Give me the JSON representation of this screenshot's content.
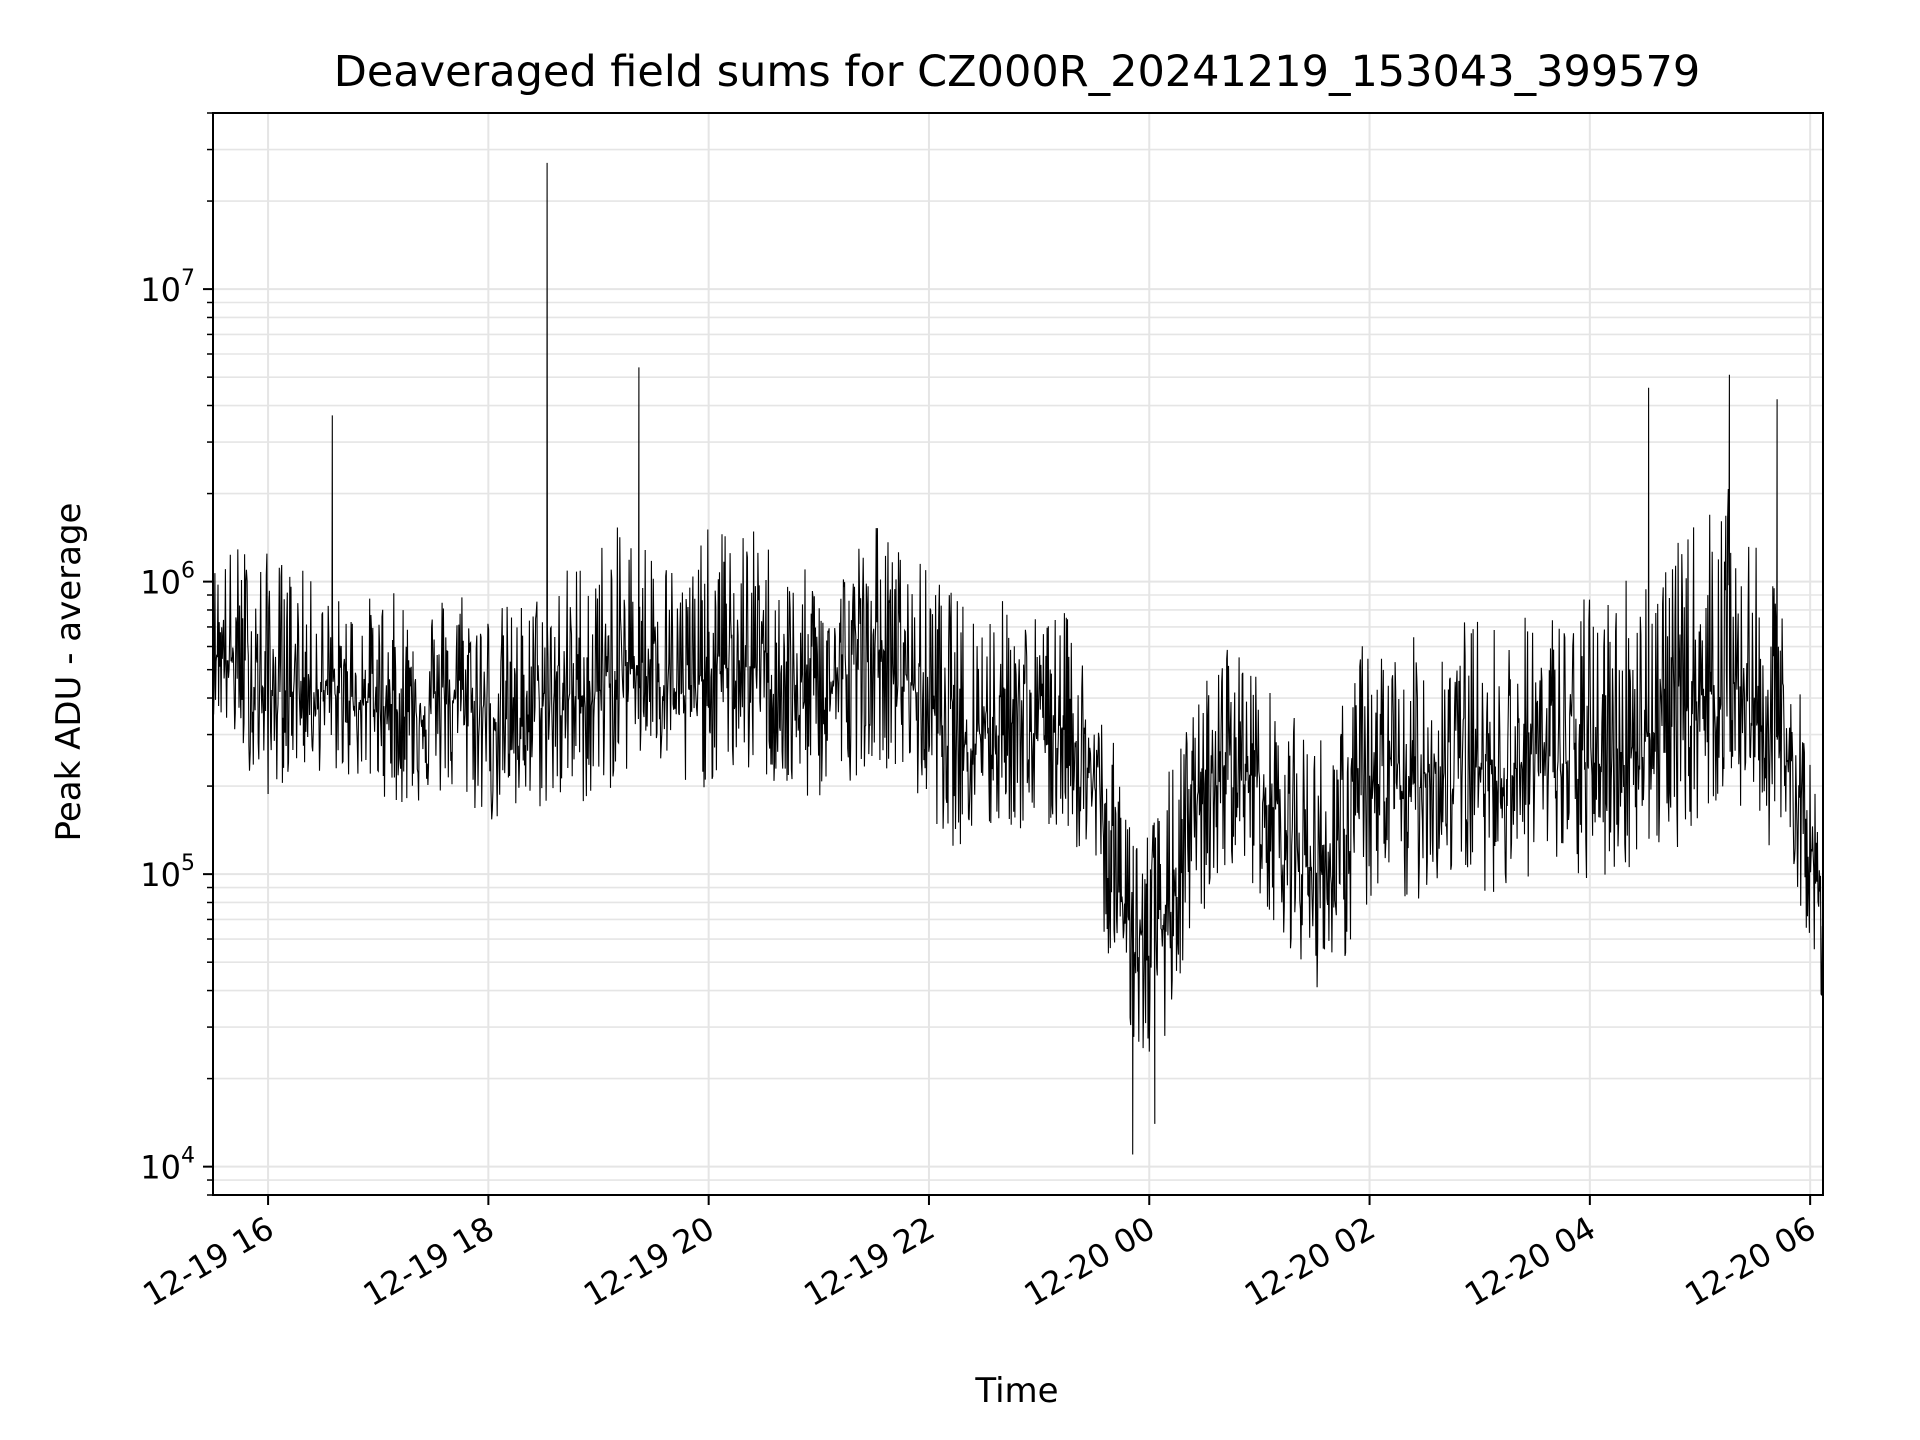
{
  "chart_data": {
    "type": "line",
    "title": "Deaveraged field sums for CZ000R_20241219_153043_399579",
    "xlabel": "Time",
    "ylabel": "Peak ADU - average",
    "yscale": "log",
    "ylim": [
      8000,
      40000000
    ],
    "xlim": [
      "2024-12-19T15:30",
      "2024-12-20T06:07"
    ],
    "grid": true,
    "line_color": "#000000",
    "grid_color": "#e5e5e5",
    "x_ticks": [
      {
        "value": "2024-12-19T16:00",
        "label": "12-19 16"
      },
      {
        "value": "2024-12-19T18:00",
        "label": "12-19 18"
      },
      {
        "value": "2024-12-19T20:00",
        "label": "12-19 20"
      },
      {
        "value": "2024-12-19T22:00",
        "label": "12-19 22"
      },
      {
        "value": "2024-12-20T00:00",
        "label": "12-20 00"
      },
      {
        "value": "2024-12-20T02:00",
        "label": "12-20 02"
      },
      {
        "value": "2024-12-20T04:00",
        "label": "12-20 04"
      },
      {
        "value": "2024-12-20T06:00",
        "label": "12-20 06"
      }
    ],
    "y_ticks": [
      {
        "value": 10000,
        "base": "10",
        "exp": "4"
      },
      {
        "value": 100000,
        "base": "10",
        "exp": "5"
      },
      {
        "value": 1000000,
        "base": "10",
        "exp": "6"
      },
      {
        "value": 10000000,
        "base": "10",
        "exp": "7"
      }
    ],
    "series": [
      {
        "x": [
          "2024-12-19T15:30",
          "2024-12-19T15:45",
          "2024-12-19T16:00",
          "2024-12-19T16:15",
          "2024-12-19T16:30",
          "2024-12-19T16:45",
          "2024-12-19T17:00",
          "2024-12-19T17:15",
          "2024-12-19T17:30",
          "2024-12-19T17:45",
          "2024-12-19T18:00",
          "2024-12-19T18:15",
          "2024-12-19T18:30",
          "2024-12-19T18:45",
          "2024-12-19T19:00",
          "2024-12-19T19:15",
          "2024-12-19T19:30",
          "2024-12-19T19:45",
          "2024-12-19T20:00",
          "2024-12-19T20:15",
          "2024-12-19T20:30",
          "2024-12-19T20:45",
          "2024-12-19T21:00",
          "2024-12-19T21:15",
          "2024-12-19T21:30",
          "2024-12-19T21:45",
          "2024-12-19T22:00",
          "2024-12-19T22:15",
          "2024-12-19T22:30",
          "2024-12-19T22:45",
          "2024-12-19T23:00",
          "2024-12-19T23:15",
          "2024-12-19T23:30",
          "2024-12-19T23:45",
          "2024-12-20T00:00",
          "2024-12-20T00:15",
          "2024-12-20T00:30",
          "2024-12-20T00:45",
          "2024-12-20T01:00",
          "2024-12-20T01:15",
          "2024-12-20T01:30",
          "2024-12-20T01:45",
          "2024-12-20T02:00",
          "2024-12-20T02:15",
          "2024-12-20T02:30",
          "2024-12-20T02:45",
          "2024-12-20T03:00",
          "2024-12-20T03:15",
          "2024-12-20T03:30",
          "2024-12-20T03:45",
          "2024-12-20T04:00",
          "2024-12-20T04:15",
          "2024-12-20T04:30",
          "2024-12-20T04:45",
          "2024-12-20T05:00",
          "2024-12-20T05:15",
          "2024-12-20T05:30",
          "2024-12-20T05:45",
          "2024-12-20T06:00",
          "2024-12-20T06:07"
        ],
        "y": [
          600000,
          500000,
          400000,
          450000,
          420000,
          400000,
          380000,
          360000,
          380000,
          400000,
          350000,
          330000,
          380000,
          400000,
          420000,
          500000,
          550000,
          400000,
          480000,
          520000,
          500000,
          400000,
          420000,
          480000,
          600000,
          500000,
          380000,
          300000,
          320000,
          340000,
          300000,
          330000,
          200000,
          80000,
          50000,
          90000,
          180000,
          260000,
          200000,
          140000,
          100000,
          120000,
          200000,
          180000,
          220000,
          250000,
          230000,
          220000,
          260000,
          240000,
          230000,
          250000,
          300000,
          320000,
          400000,
          500000,
          350000,
          280000,
          130000,
          60000
        ],
        "spread_up": [
          2.0,
          2.8,
          3.2,
          2.6,
          2.2,
          2.2,
          2.4,
          2.6,
          2.4,
          2.6,
          2.4,
          2.6,
          2.6,
          3.0,
          3.4,
          3.2,
          2.6,
          2.8,
          3.2,
          3.0,
          3.0,
          2.8,
          2.6,
          2.6,
          2.8,
          2.6,
          3.0,
          3.0,
          2.8,
          2.6,
          2.6,
          2.4,
          2.4,
          2.8,
          3.0,
          3.0,
          2.6,
          2.6,
          2.4,
          2.6,
          3.0,
          3.2,
          3.8,
          3.2,
          3.2,
          3.0,
          3.4,
          3.2,
          3.2,
          3.4,
          4.0,
          4.4,
          4.2,
          4.0,
          4.4,
          4.2,
          3.8,
          3.0,
          2.2,
          1.8
        ],
        "spread_down": [
          1.7,
          2.0,
          2.2,
          2.0,
          1.9,
          1.9,
          2.0,
          2.2,
          2.1,
          2.3,
          2.4,
          2.3,
          2.3,
          2.4,
          2.4,
          2.3,
          2.3,
          2.3,
          2.4,
          2.4,
          2.4,
          2.4,
          2.4,
          2.4,
          2.4,
          2.4,
          2.4,
          2.5,
          2.5,
          2.4,
          2.4,
          2.3,
          2.3,
          2.4,
          2.5,
          2.5,
          2.5,
          2.4,
          2.4,
          2.4,
          2.5,
          2.5,
          2.6,
          2.6,
          2.6,
          2.6,
          2.6,
          2.6,
          2.6,
          2.6,
          2.6,
          2.6,
          2.6,
          2.7,
          2.7,
          2.7,
          2.6,
          2.4,
          2.2,
          1.8
        ]
      }
    ],
    "spikes": [
      {
        "x": "2024-12-19T18:32",
        "y": 27000000
      },
      {
        "x": "2024-12-19T19:22",
        "y": 5400000
      },
      {
        "x": "2024-12-20T05:16",
        "y": 5100000
      },
      {
        "x": "2024-12-19T16:35",
        "y": 3700000
      },
      {
        "x": "2024-12-20T04:32",
        "y": 4600000
      },
      {
        "x": "2024-12-20T05:42",
        "y": 4200000
      },
      {
        "x": "2024-12-19T23:51",
        "y": 11000
      },
      {
        "x": "2024-12-20T00:03",
        "y": 14000
      }
    ]
  }
}
